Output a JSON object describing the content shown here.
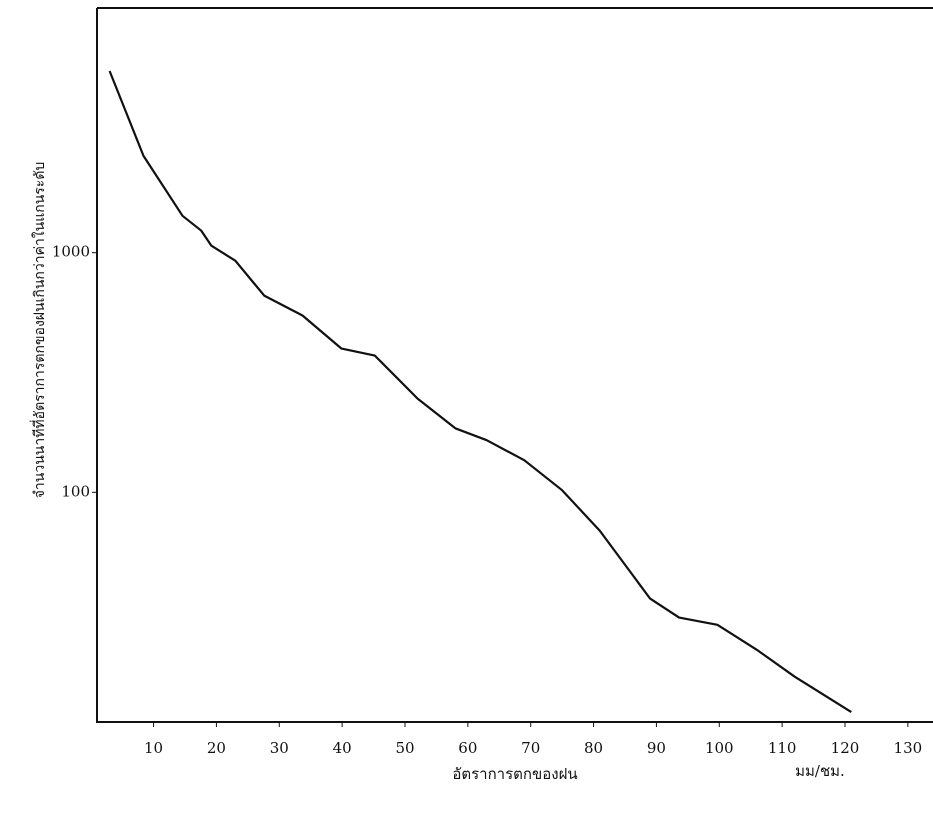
{
  "chart_data": {
    "type": "line",
    "x_label": "อัตราการตกของฝน",
    "x_unit": "มม/ชม.",
    "y_label": "จำนวนนาทีที่อัตราการตกของฝนเกินกว่าค่าในแกนระดับ",
    "log_y": true,
    "x": [
      3,
      8.4,
      14.6,
      17.6,
      19.2,
      23,
      27.6,
      33.7,
      39.9,
      45.2,
      52,
      58,
      63,
      69,
      75,
      81,
      89,
      93.6,
      99.7,
      106,
      112,
      121
    ],
    "series": [
      {
        "color": "#111111",
        "values": [
          5730,
          2535,
          1426,
          1235,
          1070,
          926,
          662,
          547,
          398,
          372,
          246,
          185,
          165,
          136,
          102,
          69,
          36,
          30,
          28,
          22,
          17,
          12.1
        ]
      }
    ],
    "xlim": [
      1,
      134
    ],
    "xticks": [
      10,
      20,
      30,
      40,
      50,
      60,
      70,
      80,
      90,
      100,
      110,
      120,
      130
    ],
    "ylim": [
      11,
      10500
    ],
    "yticks": [
      100,
      1000
    ]
  }
}
